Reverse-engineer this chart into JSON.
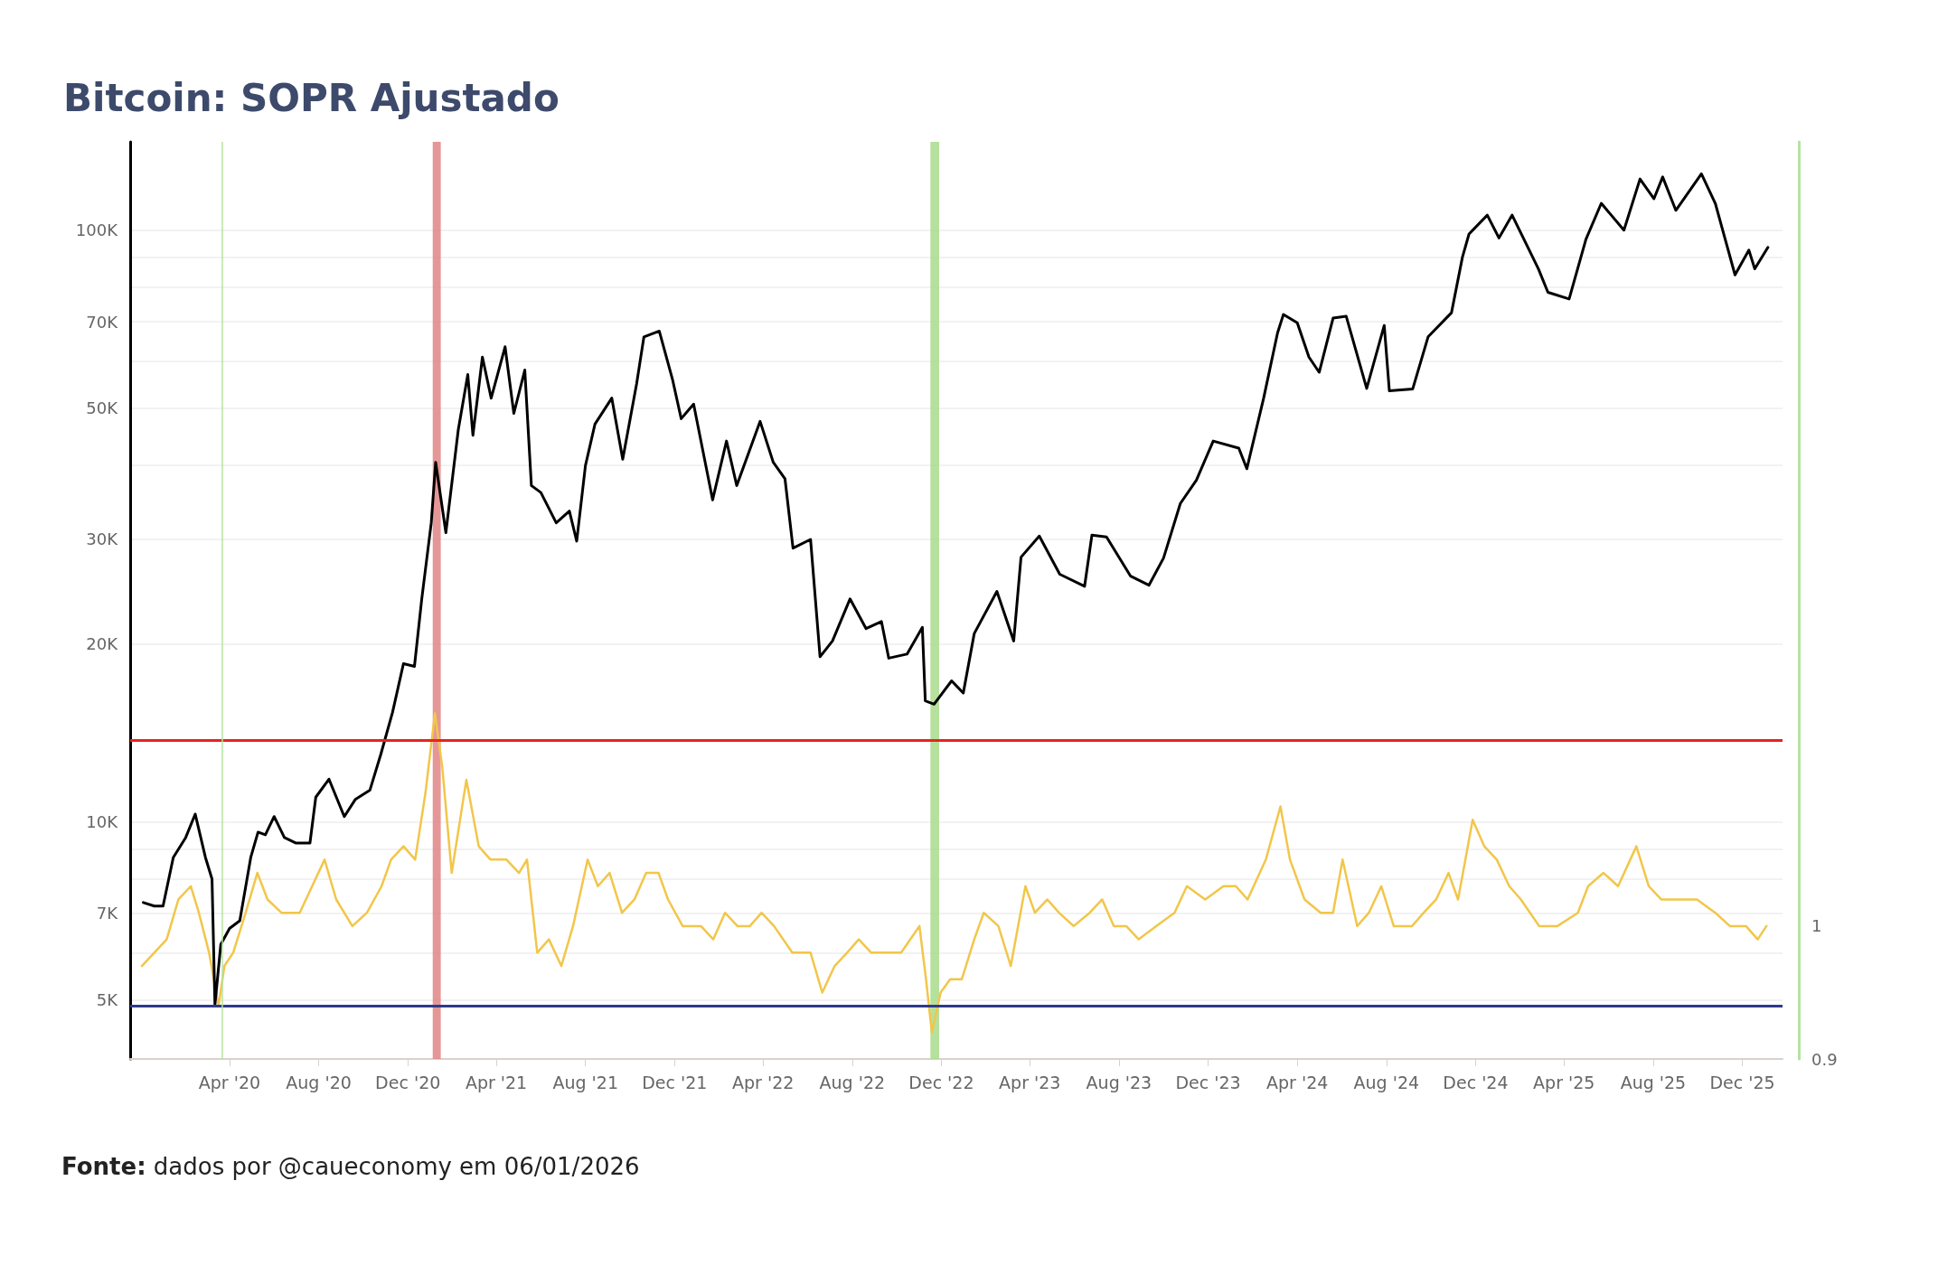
{
  "chart_data": {
    "type": "line",
    "title": "Bitcoin: SOPR Ajustado",
    "annotations": [
      "Fonte: dados por @caueconomy em 06/01/2026"
    ],
    "log": "y",
    "grid": "y",
    "xlim": [
      "2019-11-17",
      "2026-01-25"
    ],
    "xticks": [
      {
        "value": "2020-04-01",
        "label": "Apr '20"
      },
      {
        "value": "2020-08-01",
        "label": "Aug '20"
      },
      {
        "value": "2020-12-01",
        "label": "Dec '20"
      },
      {
        "value": "2021-04-01",
        "label": "Apr '21"
      },
      {
        "value": "2021-08-01",
        "label": "Aug '21"
      },
      {
        "value": "2021-12-01",
        "label": "Dec '21"
      },
      {
        "value": "2022-04-01",
        "label": "Apr '22"
      },
      {
        "value": "2022-08-01",
        "label": "Aug '22"
      },
      {
        "value": "2022-12-01",
        "label": "Dec '22"
      },
      {
        "value": "2023-04-01",
        "label": "Apr '23"
      },
      {
        "value": "2023-08-01",
        "label": "Aug '23"
      },
      {
        "value": "2023-12-01",
        "label": "Dec '23"
      },
      {
        "value": "2024-04-01",
        "label": "Apr '24"
      },
      {
        "value": "2024-08-01",
        "label": "Aug '24"
      },
      {
        "value": "2024-12-01",
        "label": "Dec '24"
      },
      {
        "value": "2025-04-01",
        "label": "Apr '25"
      },
      {
        "value": "2025-08-01",
        "label": "Aug '25"
      },
      {
        "value": "2025-12-01",
        "label": "Dec '25"
      }
    ],
    "ylim": [
      3970,
      141000
    ],
    "yticks": [
      {
        "value": 5000,
        "label": "5K"
      },
      {
        "value": 6000,
        "label": null
      },
      {
        "value": 7000,
        "label": "7K"
      },
      {
        "value": 8000,
        "label": null
      },
      {
        "value": 9000,
        "label": null
      },
      {
        "value": 10000,
        "label": "10K"
      },
      {
        "value": 20000,
        "label": "20K"
      },
      {
        "value": 30000,
        "label": "30K"
      },
      {
        "value": 40000,
        "label": null
      },
      {
        "value": 50000,
        "label": "50K"
      },
      {
        "value": 60000,
        "label": null
      },
      {
        "value": 70000,
        "label": "70K"
      },
      {
        "value": 80000,
        "label": null
      },
      {
        "value": 90000,
        "label": null
      },
      {
        "value": 100000,
        "label": "100K"
      }
    ],
    "y2lim": [
      0.9,
      1.59
    ],
    "y2ticks": [
      0.9,
      1
    ],
    "ref_lines": [
      {
        "axis": "y2",
        "value": 1.14,
        "label": null,
        "color": "#e8231f"
      },
      {
        "axis": "y2",
        "value": 0.94,
        "label": null,
        "color": "#2e3a8c"
      },
      {
        "axis": "x",
        "value": "2020-03-22",
        "label": null,
        "color": "#b5e3a0"
      }
    ],
    "bands": [
      {
        "axis": "x",
        "from": "2021-01-04",
        "to": "2021-01-15",
        "label": null,
        "color": "#e08585"
      },
      {
        "axis": "x",
        "from": "2022-11-16",
        "to": "2022-11-28",
        "label": null,
        "color": "#a8dc8c"
      }
    ],
    "series": [
      {
        "color": "#f2c64a",
        "axis": "y2",
        "x": [
          "2019-12-03",
          "2019-12-20",
          "2020-01-06",
          "2020-01-22",
          "2020-02-08",
          "2020-02-19",
          "2020-03-04",
          "2020-03-17",
          "2020-03-25",
          "2020-04-06",
          "2020-04-23",
          "2020-05-09",
          "2020-05-23",
          "2020-06-11",
          "2020-07-06",
          "2020-07-23",
          "2020-08-09",
          "2020-08-25",
          "2020-09-16",
          "2020-10-06",
          "2020-10-26",
          "2020-11-08",
          "2020-11-25",
          "2020-12-11",
          "2020-12-25",
          "2021-01-07",
          "2021-01-17",
          "2021-01-30",
          "2021-02-19",
          "2021-03-08",
          "2021-03-24",
          "2021-04-15",
          "2021-05-02",
          "2021-05-13",
          "2021-05-27",
          "2021-06-12",
          "2021-06-29",
          "2021-07-15",
          "2021-08-04",
          "2021-08-18",
          "2021-09-03",
          "2021-09-20",
          "2021-10-07",
          "2021-10-23",
          "2021-11-09",
          "2021-11-22",
          "2021-12-12",
          "2022-01-06",
          "2022-01-23",
          "2022-02-08",
          "2022-02-25",
          "2022-03-14",
          "2022-03-30",
          "2022-04-16",
          "2022-05-11",
          "2022-06-05",
          "2022-06-21",
          "2022-07-08",
          "2022-07-25",
          "2022-08-10",
          "2022-08-27",
          "2022-09-12",
          "2022-10-07",
          "2022-11-01",
          "2022-11-10",
          "2022-11-18",
          "2022-11-30",
          "2022-12-13",
          "2022-12-29",
          "2023-01-15",
          "2023-01-28",
          "2023-02-17",
          "2023-03-06",
          "2023-03-26",
          "2023-04-08",
          "2023-04-25",
          "2023-05-11",
          "2023-05-31",
          "2023-06-22",
          "2023-07-09",
          "2023-07-25",
          "2023-08-11",
          "2023-08-28",
          "2023-09-21",
          "2023-10-16",
          "2023-11-02",
          "2023-11-27",
          "2023-12-22",
          "2024-01-08",
          "2024-01-24",
          "2024-02-18",
          "2024-03-09",
          "2024-03-22",
          "2024-04-11",
          "2024-05-03",
          "2024-05-20",
          "2024-06-02",
          "2024-06-22",
          "2024-07-08",
          "2024-07-25",
          "2024-08-11",
          "2024-09-05",
          "2024-09-21",
          "2024-10-08",
          "2024-10-25",
          "2024-11-07",
          "2024-11-27",
          "2024-12-13",
          "2024-12-30",
          "2025-01-16",
          "2025-02-01",
          "2025-02-26",
          "2025-03-23",
          "2025-04-20",
          "2025-05-04",
          "2025-05-25",
          "2025-06-14",
          "2025-07-09",
          "2025-07-26",
          "2025-08-12",
          "2025-09-05",
          "2025-09-30",
          "2025-10-25",
          "2025-11-14",
          "2025-12-06",
          "2025-12-22",
          "2026-01-03"
        ],
        "values": [
          0.97,
          0.98,
          0.99,
          1.02,
          1.03,
          1.01,
          0.98,
          0.94,
          0.97,
          0.98,
          1.01,
          1.04,
          1.02,
          1.01,
          1.01,
          1.03,
          1.05,
          1.02,
          1.0,
          1.01,
          1.03,
          1.05,
          1.06,
          1.05,
          1.1,
          1.16,
          1.12,
          1.04,
          1.11,
          1.06,
          1.05,
          1.05,
          1.04,
          1.05,
          0.98,
          0.99,
          0.97,
          1.0,
          1.05,
          1.03,
          1.04,
          1.01,
          1.02,
          1.04,
          1.04,
          1.02,
          1.0,
          1.0,
          0.99,
          1.01,
          1.0,
          1.0,
          1.01,
          1.0,
          0.98,
          0.98,
          0.95,
          0.97,
          0.98,
          0.99,
          0.98,
          0.98,
          0.98,
          1.0,
          0.96,
          0.92,
          0.95,
          0.96,
          0.96,
          0.99,
          1.01,
          1.0,
          0.97,
          1.03,
          1.01,
          1.02,
          1.01,
          1.0,
          1.01,
          1.02,
          1.0,
          1.0,
          0.99,
          1.0,
          1.01,
          1.03,
          1.02,
          1.03,
          1.03,
          1.02,
          1.05,
          1.09,
          1.05,
          1.02,
          1.01,
          1.01,
          1.05,
          1.0,
          1.01,
          1.03,
          1.0,
          1.0,
          1.01,
          1.02,
          1.04,
          1.02,
          1.08,
          1.06,
          1.05,
          1.03,
          1.02,
          1.0,
          1.0,
          1.01,
          1.03,
          1.04,
          1.03,
          1.06,
          1.03,
          1.02,
          1.02,
          1.02,
          1.01,
          1.0,
          1.0,
          0.99,
          1.0
        ]
      },
      {
        "color": "#000000",
        "x": [
          "2019-12-05",
          "2019-12-20",
          "2020-01-01",
          "2020-01-15",
          "2020-02-01",
          "2020-02-14",
          "2020-02-28",
          "2020-03-08",
          "2020-03-12",
          "2020-03-20",
          "2020-04-01",
          "2020-04-15",
          "2020-04-30",
          "2020-05-10",
          "2020-05-20",
          "2020-06-01",
          "2020-06-15",
          "2020-07-01",
          "2020-07-20",
          "2020-07-28",
          "2020-08-15",
          "2020-09-05",
          "2020-09-20",
          "2020-10-10",
          "2020-10-25",
          "2020-11-10",
          "2020-11-25",
          "2020-12-10",
          "2020-12-20",
          "2021-01-02",
          "2021-01-08",
          "2021-01-22",
          "2021-02-08",
          "2021-02-21",
          "2021-02-28",
          "2021-03-13",
          "2021-03-25",
          "2021-04-13",
          "2021-04-25",
          "2021-05-10",
          "2021-05-19",
          "2021-06-01",
          "2021-06-22",
          "2021-07-10",
          "2021-07-20",
          "2021-08-01",
          "2021-08-14",
          "2021-09-06",
          "2021-09-21",
          "2021-10-10",
          "2021-10-20",
          "2021-11-10",
          "2021-11-28",
          "2021-12-10",
          "2021-12-27",
          "2022-01-22",
          "2022-02-10",
          "2022-02-24",
          "2022-03-28",
          "2022-04-15",
          "2022-05-01",
          "2022-05-12",
          "2022-06-05",
          "2022-06-18",
          "2022-07-05",
          "2022-07-29",
          "2022-08-20",
          "2022-09-10",
          "2022-09-20",
          "2022-10-15",
          "2022-11-05",
          "2022-11-09",
          "2022-11-21",
          "2022-12-15",
          "2022-12-31",
          "2023-01-15",
          "2023-02-15",
          "2023-03-10",
          "2023-03-20",
          "2023-04-14",
          "2023-05-12",
          "2023-06-15",
          "2023-06-25",
          "2023-07-15",
          "2023-08-17",
          "2023-09-11",
          "2023-10-01",
          "2023-10-24",
          "2023-11-15",
          "2023-12-08",
          "2024-01-12",
          "2024-01-23",
          "2024-02-15",
          "2024-03-05",
          "2024-03-13",
          "2024-04-01",
          "2024-04-17",
          "2024-05-01",
          "2024-05-20",
          "2024-06-07",
          "2024-07-05",
          "2024-07-29",
          "2024-08-05",
          "2024-09-06",
          "2024-09-27",
          "2024-10-29",
          "2024-11-13",
          "2024-11-22",
          "2024-12-17",
          "2025-01-02",
          "2025-01-20",
          "2025-02-25",
          "2025-03-10",
          "2025-04-08",
          "2025-05-01",
          "2025-05-22",
          "2025-06-22",
          "2025-07-14",
          "2025-08-02",
          "2025-08-14",
          "2025-09-01",
          "2025-10-06",
          "2025-10-25",
          "2025-11-21",
          "2025-12-10",
          "2025-12-18",
          "2026-01-05"
        ],
        "values": [
          7300,
          7200,
          7200,
          8700,
          9400,
          10300,
          8700,
          8000,
          4900,
          6200,
          6600,
          6800,
          8700,
          9600,
          9500,
          10200,
          9400,
          9200,
          9200,
          11000,
          11800,
          10200,
          10900,
          11300,
          13000,
          15300,
          18500,
          18300,
          23800,
          32000,
          40500,
          30800,
          46000,
          57000,
          45000,
          61000,
          52000,
          63500,
          49000,
          58000,
          37000,
          36000,
          32000,
          33500,
          29800,
          40000,
          47000,
          52000,
          41000,
          55000,
          66000,
          67500,
          56000,
          48000,
          50800,
          35000,
          44000,
          37000,
          47500,
          40500,
          38000,
          29000,
          30000,
          19000,
          20200,
          23800,
          21200,
          21800,
          18900,
          19200,
          21300,
          16000,
          15800,
          17300,
          16500,
          20800,
          24500,
          20200,
          28000,
          30400,
          26200,
          25000,
          30500,
          30300,
          26000,
          25100,
          27900,
          34500,
          37800,
          44000,
          42800,
          39500,
          52000,
          67000,
          72000,
          69700,
          61000,
          57500,
          71000,
          71500,
          54000,
          69000,
          53500,
          53900,
          66000,
          72500,
          90000,
          98500,
          106000,
          97000,
          106000,
          86000,
          78500,
          76500,
          96500,
          111000,
          100000,
          122000,
          113000,
          123000,
          108000,
          124500,
          111000,
          84000,
          92500,
          86000,
          93500
        ]
      }
    ]
  }
}
